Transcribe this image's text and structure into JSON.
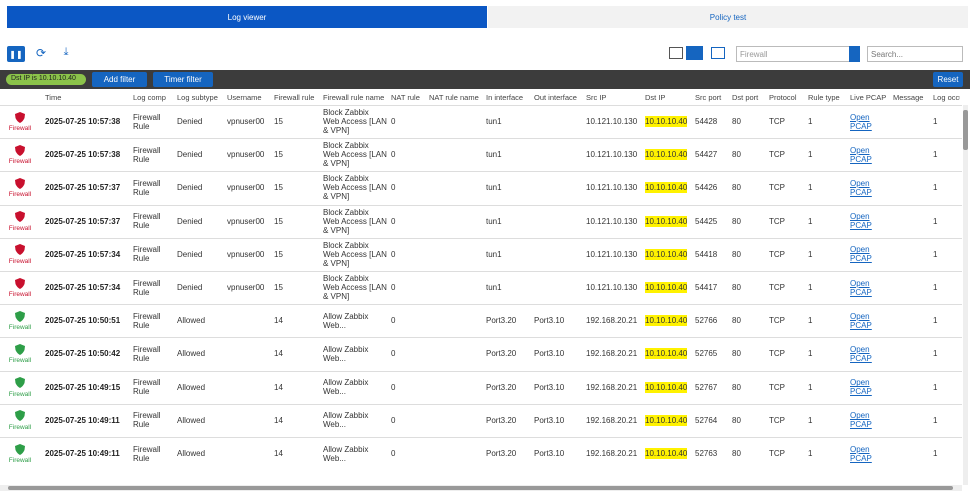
{
  "tabs": [
    "Log viewer",
    "Policy test"
  ],
  "toolbar": {
    "log_select": "Firewall",
    "search": "Search..."
  },
  "filter_bar": {
    "chip": "Dst IP is 10.10.10.40",
    "add_filter": "Add filter",
    "timer_filter": "Timer filter",
    "reset": "Reset"
  },
  "table": {
    "columns": [
      null,
      "Time",
      "Log comp",
      "Log subtype",
      "Username",
      "Firewall rule",
      "Firewall rule name",
      "NAT rule",
      "NAT rule name",
      "In interface",
      "Out interface",
      "Src IP",
      "Dst IP",
      "Src port",
      "Dst port",
      "Protocol",
      "Rule type",
      "Live PCAP",
      "Message",
      "Log occu"
    ],
    "row_colors": [
      "#c8102e",
      "#c8102e",
      "#c8102e",
      "#c8102e",
      "#c8102e",
      "#c8102e",
      "#2e9e48",
      "#2e9e48",
      "#2e9e48",
      "#2e9e48",
      "#2e9e48"
    ],
    "rows": [
      [
        "Firewall",
        "2025-07-25 10:57:38",
        "Firewall Rule",
        "Denied",
        "vpnuser00",
        "15",
        "Block Zabbix Web Access [LAN & VPN]",
        "0",
        null,
        "tun1",
        null,
        "10.121.10.130",
        "10.10.10.40",
        "54428",
        "80",
        "TCP",
        "1",
        "Open PCAP",
        null,
        "1"
      ],
      [
        "Firewall",
        "2025-07-25 10:57:38",
        "Firewall Rule",
        "Denied",
        "vpnuser00",
        "15",
        "Block Zabbix Web Access [LAN & VPN]",
        "0",
        null,
        "tun1",
        null,
        "10.121.10.130",
        "10.10.10.40",
        "54427",
        "80",
        "TCP",
        "1",
        "Open PCAP",
        null,
        "1"
      ],
      [
        "Firewall",
        "2025-07-25 10:57:37",
        "Firewall Rule",
        "Denied",
        "vpnuser00",
        "15",
        "Block Zabbix Web Access [LAN & VPN]",
        "0",
        null,
        "tun1",
        null,
        "10.121.10.130",
        "10.10.10.40",
        "54426",
        "80",
        "TCP",
        "1",
        "Open PCAP",
        null,
        "1"
      ],
      [
        "Firewall",
        "2025-07-25 10:57:37",
        "Firewall Rule",
        "Denied",
        "vpnuser00",
        "15",
        "Block Zabbix Web Access [LAN & VPN]",
        "0",
        null,
        "tun1",
        null,
        "10.121.10.130",
        "10.10.10.40",
        "54425",
        "80",
        "TCP",
        "1",
        "Open PCAP",
        null,
        "1"
      ],
      [
        "Firewall",
        "2025-07-25 10:57:34",
        "Firewall Rule",
        "Denied",
        "vpnuser00",
        "15",
        "Block Zabbix Web Access [LAN & VPN]",
        "0",
        null,
        "tun1",
        null,
        "10.121.10.130",
        "10.10.10.40",
        "54418",
        "80",
        "TCP",
        "1",
        "Open PCAP",
        null,
        "1"
      ],
      [
        "Firewall",
        "2025-07-25 10:57:34",
        "Firewall Rule",
        "Denied",
        "vpnuser00",
        "15",
        "Block Zabbix Web Access [LAN & VPN]",
        "0",
        null,
        "tun1",
        null,
        "10.121.10.130",
        "10.10.10.40",
        "54417",
        "80",
        "TCP",
        "1",
        "Open PCAP",
        null,
        "1"
      ],
      [
        "Firewall",
        "2025-07-25 10:50:51",
        "Firewall Rule",
        "Allowed",
        null,
        "14",
        "Allow Zabbix Web...",
        "0",
        null,
        "Port3.20",
        "Port3.10",
        "192.168.20.21",
        "10.10.10.40",
        "52766",
        "80",
        "TCP",
        "1",
        "Open PCAP",
        null,
        "1"
      ],
      [
        "Firewall",
        "2025-07-25 10:50:42",
        "Firewall Rule",
        "Allowed",
        null,
        "14",
        "Allow Zabbix Web...",
        "0",
        null,
        "Port3.20",
        "Port3.10",
        "192.168.20.21",
        "10.10.10.40",
        "52765",
        "80",
        "TCP",
        "1",
        "Open PCAP",
        null,
        "1"
      ],
      [
        "Firewall",
        "2025-07-25 10:49:15",
        "Firewall Rule",
        "Allowed",
        null,
        "14",
        "Allow Zabbix Web...",
        "0",
        null,
        "Port3.20",
        "Port3.10",
        "192.168.20.21",
        "10.10.10.40",
        "52767",
        "80",
        "TCP",
        "1",
        "Open PCAP",
        null,
        "1"
      ],
      [
        "Firewall",
        "2025-07-25 10:49:11",
        "Firewall Rule",
        "Allowed",
        null,
        "14",
        "Allow Zabbix Web...",
        "0",
        null,
        "Port3.20",
        "Port3.10",
        "192.168.20.21",
        "10.10.10.40",
        "52764",
        "80",
        "TCP",
        "1",
        "Open PCAP",
        null,
        "1"
      ],
      [
        "Firewall",
        "2025-07-25 10:49:11",
        "Firewall Rule",
        "Allowed",
        null,
        "14",
        "Allow Zabbix Web...",
        "0",
        null,
        "Port3.20",
        "Port3.10",
        "192.168.20.21",
        "10.10.10.40",
        "52763",
        "80",
        "TCP",
        "1",
        "Open PCAP",
        null,
        "1"
      ]
    ]
  }
}
